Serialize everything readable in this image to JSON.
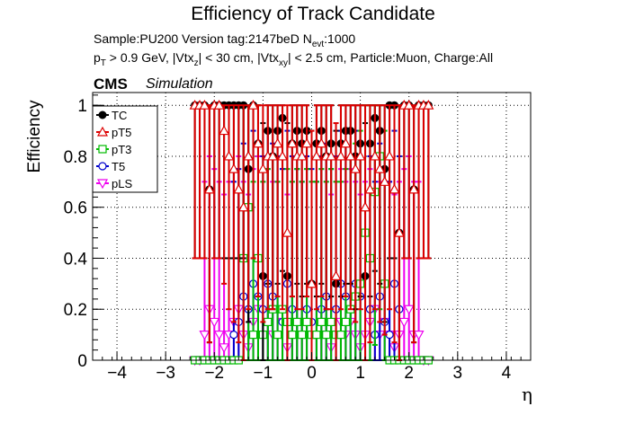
{
  "header": {
    "title": "Efficiency of Track Candidate",
    "sample_line": "Sample:PU200   Version tag:2147beD  N",
    "sample_sub": "evt",
    "sample_tail": ":1000",
    "cut_line": {
      "p": "p",
      "t1": "T",
      "a": " > 0.9 GeV, |Vtx",
      "z": "z",
      "b": "| < 30 cm, |Vtx",
      "xy": "xy",
      "c": "| < 2.5 cm, Particle:Muon, Charge:All"
    },
    "cms": "CMS",
    "simulation": "Simulation"
  },
  "chart_data": {
    "type": "scatter",
    "xlabel": "η",
    "ylabel": "Efficiency",
    "xlim": [
      -4.5,
      4.5
    ],
    "ylim": [
      0,
      1.05
    ],
    "xticks": [
      -4,
      -3,
      -2,
      -1,
      0,
      1,
      2,
      3,
      4
    ],
    "xtick_labels": [
      "−4",
      "−3",
      "−2",
      "−1",
      "0",
      "1",
      "2",
      "3",
      "4"
    ],
    "yticks": [
      0,
      0.2,
      0.4,
      0.6,
      0.8,
      1
    ],
    "ytick_labels": [
      "0",
      "0.2",
      "0.4",
      "0.6",
      "0.8",
      "1"
    ],
    "grid": true,
    "legend_position": "top-left",
    "x": [
      -2.4,
      -2.3,
      -2.2,
      -2.1,
      -2.0,
      -1.9,
      -1.8,
      -1.7,
      -1.6,
      -1.5,
      -1.4,
      -1.3,
      -1.2,
      -1.1,
      -1.0,
      -0.9,
      -0.8,
      -0.7,
      -0.6,
      -0.5,
      -0.4,
      -0.3,
      -0.2,
      -0.1,
      0.0,
      0.1,
      0.2,
      0.3,
      0.4,
      0.5,
      0.6,
      0.7,
      0.8,
      0.9,
      1.0,
      1.1,
      1.2,
      1.3,
      1.4,
      1.5,
      1.6,
      1.7,
      1.8,
      1.9,
      2.0,
      2.1,
      2.2,
      2.3,
      2.4
    ],
    "series": [
      {
        "name": "TC",
        "color": "#000000",
        "marker": "filled-circle",
        "values": [
          1,
          1,
          1,
          0.67,
          1,
          1,
          1,
          1,
          1,
          1,
          1,
          0.75,
          1,
          0.85,
          0.33,
          0.9,
          0.8,
          0.9,
          0.95,
          0.33,
          0.85,
          0.9,
          0.85,
          0.9,
          0.3,
          0.85,
          0.9,
          0.8,
          0.85,
          0.3,
          0.85,
          0.9,
          0.9,
          0.8,
          0.85,
          0.33,
          0.85,
          0.95,
          0.9,
          0.75,
          1,
          1,
          0.5,
          1,
          1,
          0.67,
          1,
          1,
          1
        ]
      },
      {
        "name": "pT5",
        "color": "#dd0000",
        "marker": "open-triangle",
        "values": [
          1,
          1,
          1,
          0.67,
          1,
          1,
          0.9,
          0.8,
          0.75,
          0.67,
          0.6,
          0.8,
          1,
          0.85,
          0.75,
          0.8,
          0.8,
          0.85,
          0.8,
          0.5,
          0.85,
          0.8,
          0.8,
          0.85,
          0.3,
          0.8,
          0.85,
          0.8,
          0.8,
          0.33,
          0.8,
          0.85,
          0.8,
          0.75,
          0.8,
          0.6,
          0.67,
          0.8,
          0.75,
          0.7,
          0.8,
          0.67,
          0.5,
          1,
          1,
          0.67,
          1,
          1,
          1
        ]
      },
      {
        "name": "pT3",
        "color": "#00bb00",
        "marker": "open-square",
        "values": [
          0,
          0,
          0,
          0,
          0,
          0,
          0,
          0,
          0,
          0,
          0.4,
          0.6,
          0.1,
          0.4,
          0.1,
          0.15,
          0.2,
          0.1,
          0.2,
          0.15,
          0.1,
          0.15,
          0.1,
          0.15,
          0.1,
          0.1,
          0.15,
          0.1,
          0.15,
          0.1,
          0.1,
          0.15,
          0.2,
          0.25,
          0.3,
          0.5,
          0.4,
          0.66,
          0.8,
          0.3,
          0,
          0,
          0,
          0,
          0,
          0,
          0,
          0,
          0
        ]
      },
      {
        "name": "T5",
        "color": "#0000cc",
        "marker": "open-circle",
        "values": [
          0,
          0,
          0,
          0,
          0,
          0,
          0,
          0,
          0.1,
          0.15,
          0.25,
          0.2,
          0.3,
          0.25,
          0.2,
          0.3,
          0.25,
          0.2,
          0.15,
          0.3,
          0.2,
          0.15,
          0.1,
          0.2,
          0.15,
          0.1,
          0.2,
          0.25,
          0.15,
          0.2,
          0.3,
          0.25,
          0.2,
          0.3,
          0.25,
          0.5,
          0.2,
          0.1,
          0.25,
          0.15,
          0.1,
          0.3,
          0.2,
          0,
          0,
          0,
          0,
          0,
          0
        ]
      },
      {
        "name": "pLS",
        "color": "#ee00ee",
        "marker": "open-triangle-down",
        "values": [
          0,
          0,
          0.1,
          0.2,
          0.15,
          0.1,
          0.05,
          0.1,
          0.15,
          0.2,
          0.1,
          0.05,
          0.15,
          0.2,
          0.1,
          0.15,
          0.1,
          0.1,
          0.15,
          0.05,
          0.1,
          0.15,
          0.1,
          0.15,
          0.1,
          0.1,
          0.15,
          0.1,
          0.05,
          0.1,
          0.15,
          0.1,
          0.15,
          0.1,
          0.05,
          0.1,
          0.15,
          0.2,
          0.1,
          0.15,
          0.1,
          0.05,
          0.1,
          0.15,
          0.2,
          0.1,
          0.1,
          0,
          0
        ]
      }
    ]
  }
}
